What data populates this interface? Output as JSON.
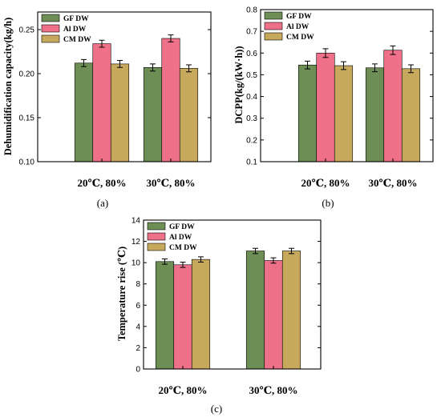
{
  "colors": {
    "GF DW": "#6d8e55",
    "Al DW": "#ee7189",
    "CM DW": "#c7a95d"
  },
  "chart_data": [
    {
      "type": "bar",
      "panel": "(a)",
      "ylabel": "Dehumidification capacity(kg/h)",
      "ylim": [
        0.1,
        0.27
      ],
      "yticks": [
        "0.10",
        "0.15",
        "0.20",
        "0.25"
      ],
      "ytick_values": [
        0.1,
        0.15,
        0.2,
        0.25
      ],
      "categories": [
        "20℃, 80%",
        "30℃, 80%"
      ],
      "legend_position": "top-left",
      "series": [
        {
          "name": "GF DW",
          "values": [
            0.212,
            0.207
          ],
          "errors": [
            0.004,
            0.004
          ]
        },
        {
          "name": "Al DW",
          "values": [
            0.234,
            0.24
          ],
          "errors": [
            0.004,
            0.004
          ]
        },
        {
          "name": "CM DW",
          "values": [
            0.211,
            0.206
          ],
          "errors": [
            0.004,
            0.004
          ]
        }
      ]
    },
    {
      "type": "bar",
      "panel": "(b)",
      "ylabel": "DCPP(kg/(kW·h))",
      "ylim": [
        0.1,
        0.8
      ],
      "yticks": [
        "0.1",
        "0.2",
        "0.3",
        "0.4",
        "0.5",
        "0.6",
        "0.7",
        "0.8"
      ],
      "ytick_values": [
        0.1,
        0.2,
        0.3,
        0.4,
        0.5,
        0.6,
        0.7,
        0.8
      ],
      "categories": [
        "20℃, 80%",
        "30℃, 80%"
      ],
      "legend_position": "top-left",
      "series": [
        {
          "name": "GF DW",
          "values": [
            0.545,
            0.532
          ],
          "errors": [
            0.018,
            0.018
          ]
        },
        {
          "name": "Al DW",
          "values": [
            0.6,
            0.613
          ],
          "errors": [
            0.02,
            0.02
          ]
        },
        {
          "name": "CM DW",
          "values": [
            0.542,
            0.528
          ],
          "errors": [
            0.018,
            0.018
          ]
        }
      ]
    },
    {
      "type": "bar",
      "panel": "(c)",
      "ylabel": "Temperature rise (℃)",
      "ylim": [
        0,
        14
      ],
      "yticks": [
        "0",
        "2",
        "4",
        "6",
        "8",
        "10",
        "12",
        "14"
      ],
      "ytick_values": [
        0,
        2,
        4,
        6,
        8,
        10,
        12,
        14
      ],
      "categories": [
        "20℃, 80%",
        "30℃, 80%"
      ],
      "legend_position": "top-left",
      "series": [
        {
          "name": "GF DW",
          "values": [
            10.1,
            11.1
          ],
          "errors": [
            0.25,
            0.25
          ]
        },
        {
          "name": "Al DW",
          "values": [
            9.8,
            10.2
          ],
          "errors": [
            0.25,
            0.25
          ]
        },
        {
          "name": "CM DW",
          "values": [
            10.3,
            11.1
          ],
          "errors": [
            0.25,
            0.25
          ]
        }
      ]
    }
  ]
}
